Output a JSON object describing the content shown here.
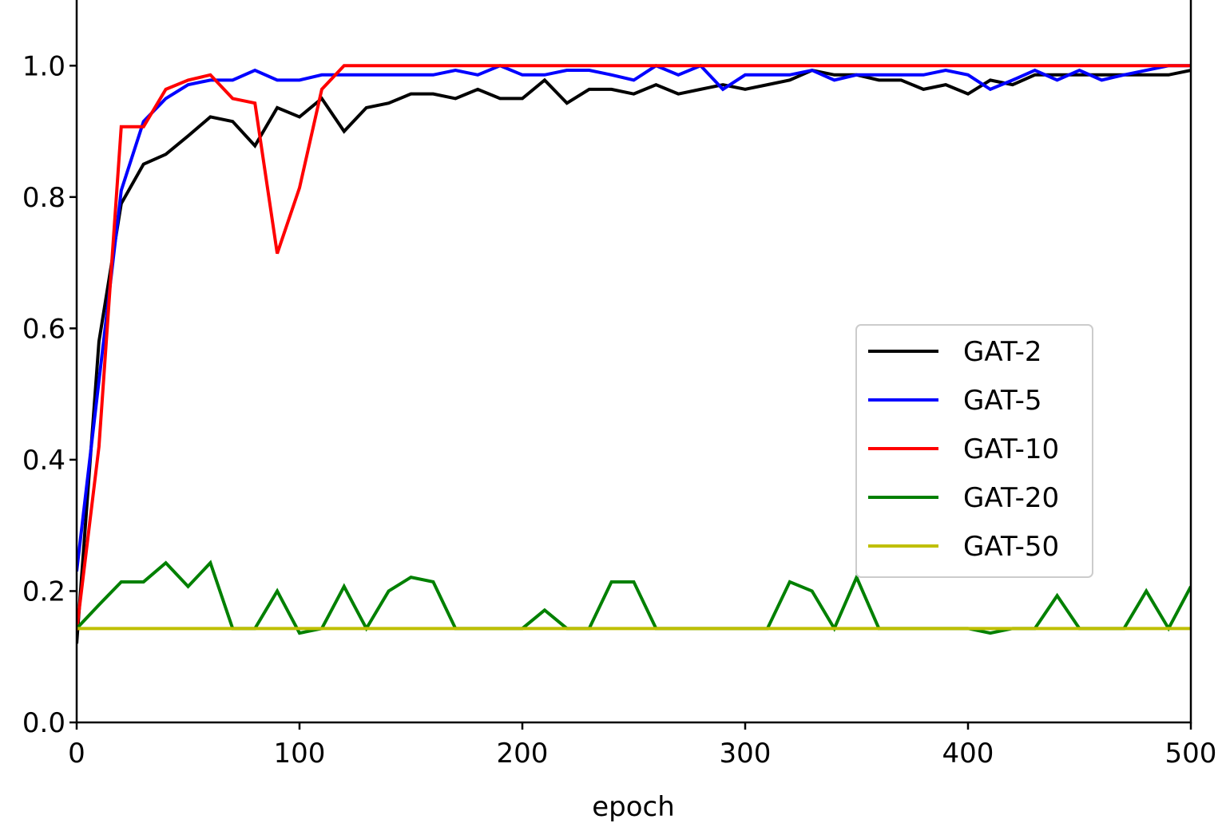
{
  "chart_data": {
    "type": "line",
    "title": "",
    "xlabel": "epoch",
    "ylabel": "",
    "xlim": [
      0,
      500
    ],
    "ylim": [
      0.0,
      1.1
    ],
    "xticks": [
      0,
      100,
      200,
      300,
      400,
      500
    ],
    "xtick_labels": [
      "0",
      "100",
      "200",
      "300",
      "400",
      "500"
    ],
    "yticks": [
      0.0,
      0.2,
      0.4,
      0.6,
      0.8,
      1.0
    ],
    "ytick_labels": [
      "0.0",
      "0.2",
      "0.4",
      "0.6",
      "0.8",
      "1.0"
    ],
    "grid": false,
    "legend_position": "center-right",
    "x": [
      0,
      10,
      20,
      30,
      40,
      50,
      60,
      70,
      80,
      90,
      100,
      110,
      120,
      130,
      140,
      150,
      160,
      170,
      180,
      190,
      200,
      210,
      220,
      230,
      240,
      250,
      260,
      270,
      280,
      290,
      300,
      310,
      320,
      330,
      340,
      350,
      360,
      370,
      380,
      390,
      400,
      410,
      420,
      430,
      440,
      450,
      460,
      470,
      480,
      490,
      500
    ],
    "series": [
      {
        "name": "GAT-2",
        "color": "#000000",
        "values": [
          0.12,
          0.58,
          0.79,
          0.85,
          0.865,
          0.893,
          0.922,
          0.915,
          0.878,
          0.936,
          0.922,
          0.95,
          0.9,
          0.936,
          0.943,
          0.957,
          0.957,
          0.95,
          0.964,
          0.95,
          0.95,
          0.978,
          0.943,
          0.964,
          0.964,
          0.957,
          0.971,
          0.957,
          0.964,
          0.971,
          0.964,
          0.971,
          0.978,
          0.993,
          0.986,
          0.986,
          0.978,
          0.978,
          0.964,
          0.971,
          0.957,
          0.978,
          0.971,
          0.986,
          0.986,
          0.986,
          0.986,
          0.986,
          0.986,
          0.986,
          0.993
        ]
      },
      {
        "name": "GAT-5",
        "color": "#0000ff",
        "values": [
          0.23,
          0.52,
          0.81,
          0.915,
          0.95,
          0.971,
          0.978,
          0.978,
          0.993,
          0.978,
          0.978,
          0.986,
          0.986,
          0.986,
          0.986,
          0.986,
          0.986,
          0.993,
          0.986,
          1.0,
          0.986,
          0.986,
          0.993,
          0.993,
          0.986,
          0.978,
          1.0,
          0.986,
          1.0,
          0.964,
          0.986,
          0.986,
          0.986,
          0.993,
          0.978,
          0.986,
          0.986,
          0.986,
          0.986,
          0.993,
          0.986,
          0.964,
          0.978,
          0.993,
          0.978,
          0.993,
          0.978,
          0.986,
          0.993,
          1.0,
          1.0
        ]
      },
      {
        "name": "GAT-10",
        "color": "#ff0000",
        "values": [
          0.14,
          0.42,
          0.907,
          0.907,
          0.964,
          0.978,
          0.986,
          0.95,
          0.943,
          0.714,
          0.814,
          0.964,
          1.0,
          1.0,
          1.0,
          1.0,
          1.0,
          1.0,
          1.0,
          1.0,
          1.0,
          1.0,
          1.0,
          1.0,
          1.0,
          1.0,
          1.0,
          1.0,
          1.0,
          1.0,
          1.0,
          1.0,
          1.0,
          1.0,
          1.0,
          1.0,
          1.0,
          1.0,
          1.0,
          1.0,
          1.0,
          1.0,
          1.0,
          1.0,
          1.0,
          1.0,
          1.0,
          1.0,
          1.0,
          1.0,
          1.0
        ]
      },
      {
        "name": "GAT-20",
        "color": "#008000",
        "values": [
          0.143,
          0.179,
          0.214,
          0.214,
          0.243,
          0.207,
          0.243,
          0.143,
          0.143,
          0.2,
          0.136,
          0.143,
          0.207,
          0.143,
          0.2,
          0.221,
          0.214,
          0.143,
          0.143,
          0.143,
          0.143,
          0.171,
          0.143,
          0.143,
          0.214,
          0.214,
          0.143,
          0.143,
          0.143,
          0.143,
          0.143,
          0.143,
          0.214,
          0.2,
          0.143,
          0.221,
          0.143,
          0.143,
          0.143,
          0.143,
          0.143,
          0.136,
          0.143,
          0.143,
          0.193,
          0.143,
          0.143,
          0.143,
          0.2,
          0.143,
          0.207
        ]
      },
      {
        "name": "GAT-50",
        "color": "#bfbf00",
        "values": [
          0.143,
          0.143,
          0.143,
          0.143,
          0.143,
          0.143,
          0.143,
          0.143,
          0.143,
          0.143,
          0.143,
          0.143,
          0.143,
          0.143,
          0.143,
          0.143,
          0.143,
          0.143,
          0.143,
          0.143,
          0.143,
          0.143,
          0.143,
          0.143,
          0.143,
          0.143,
          0.143,
          0.143,
          0.143,
          0.143,
          0.143,
          0.143,
          0.143,
          0.143,
          0.143,
          0.143,
          0.143,
          0.143,
          0.143,
          0.143,
          0.143,
          0.143,
          0.143,
          0.143,
          0.143,
          0.143,
          0.143,
          0.143,
          0.143,
          0.143,
          0.143
        ]
      }
    ]
  }
}
